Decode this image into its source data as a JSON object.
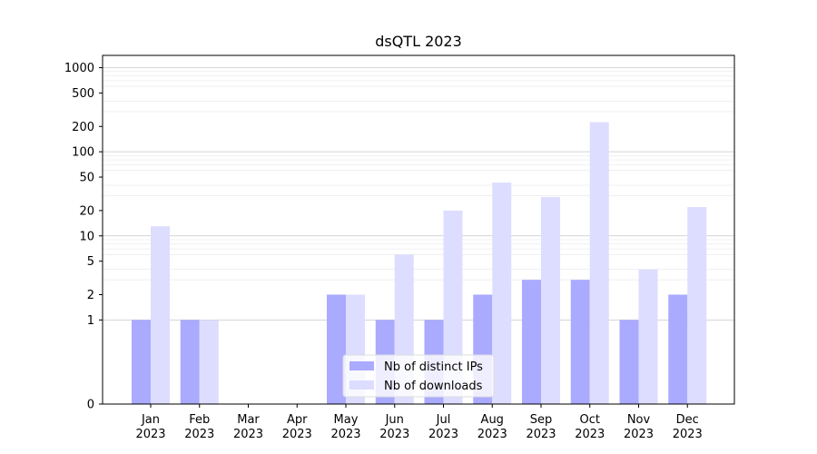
{
  "chart_data": {
    "type": "bar",
    "title": "dsQTL 2023",
    "xlabel": "",
    "ylabel": "",
    "yscale": "symlog",
    "ylim": [
      0,
      1400
    ],
    "y_ticks": [
      0,
      1,
      2,
      5,
      10,
      20,
      50,
      100,
      200,
      500,
      1000
    ],
    "y_tick_labels": [
      "0",
      "1",
      "2",
      "5",
      "10",
      "20",
      "50",
      "100",
      "200",
      "500",
      "1000"
    ],
    "categories": [
      "Jan\n2023",
      "Feb\n2023",
      "Mar\n2023",
      "Apr\n2023",
      "May\n2023",
      "Jun\n2023",
      "Jul\n2023",
      "Aug\n2023",
      "Sep\n2023",
      "Oct\n2023",
      "Nov\n2023",
      "Dec\n2023"
    ],
    "series": [
      {
        "name": "Nb of distinct IPs",
        "color": "#aaaaff",
        "values": [
          1,
          1,
          0,
          0,
          2,
          1,
          1,
          2,
          3,
          3,
          1,
          2
        ]
      },
      {
        "name": "Nb of downloads",
        "color": "#ddddff",
        "values": [
          13,
          1,
          0,
          0,
          2,
          6,
          20,
          43,
          29,
          225,
          4,
          22
        ]
      }
    ],
    "grid": true,
    "legend_position": "lower-center"
  }
}
